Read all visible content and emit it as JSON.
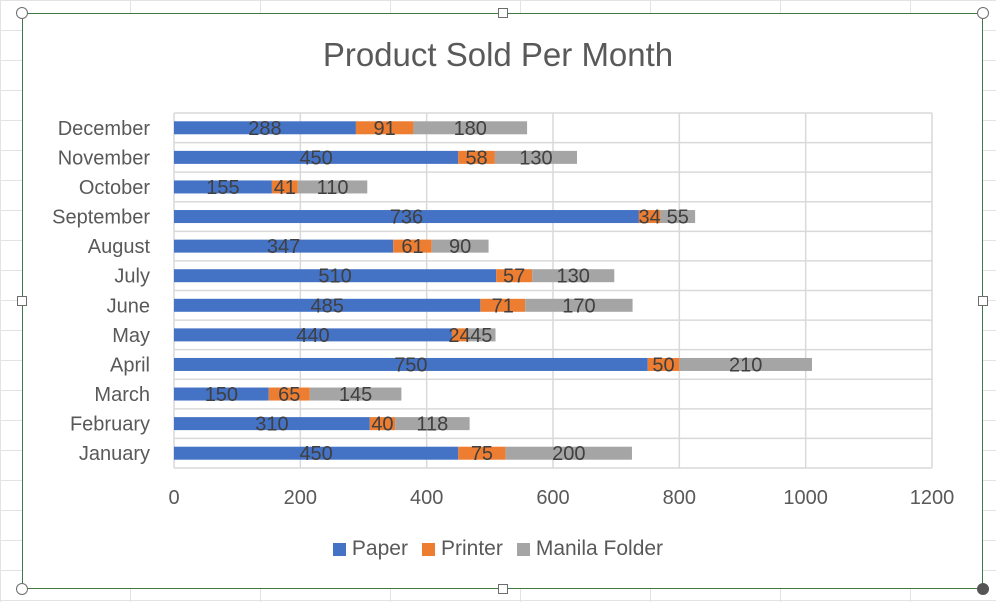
{
  "chart_data": {
    "type": "bar",
    "orientation": "horizontal",
    "stacked": true,
    "title": "Product Sold Per Month",
    "xlabel": "",
    "ylabel": "",
    "xlim": [
      0,
      1200
    ],
    "x_ticks": [
      "0",
      "200",
      "400",
      "600",
      "800",
      "1000",
      "1200"
    ],
    "grid": true,
    "legend_position": "bottom",
    "categories": [
      "January",
      "February ",
      "March",
      "April",
      "May",
      "June",
      "July",
      "August",
      "September",
      "October",
      "November",
      "December"
    ],
    "series": [
      {
        "name": "Paper",
        "color": "#4472c4",
        "values": [
          450,
          310,
          150,
          750,
          440,
          485,
          510,
          347,
          736,
          155,
          450,
          288
        ]
      },
      {
        "name": "Printer",
        "color": "#ed7d31",
        "values": [
          75,
          40,
          65,
          50,
          24,
          71,
          57,
          61,
          34,
          41,
          58,
          91
        ]
      },
      {
        "name": "Manila Folder",
        "color": "#a5a5a5",
        "values": [
          200,
          118,
          145,
          210,
          45,
          170,
          130,
          90,
          55,
          110,
          130,
          180
        ]
      }
    ]
  }
}
